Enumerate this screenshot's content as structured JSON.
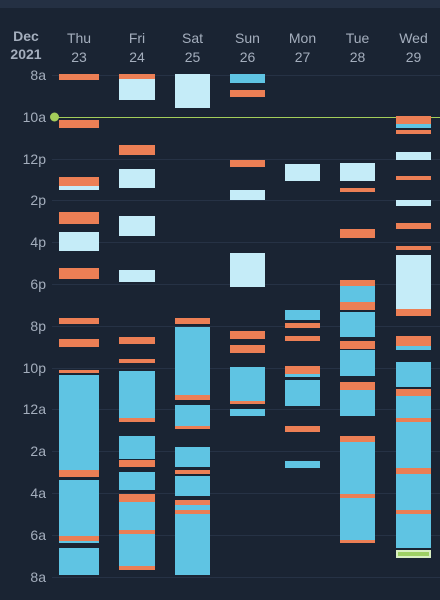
{
  "header": {
    "month": "Dec",
    "year": "2021"
  },
  "days": [
    {
      "name": "Thu",
      "date": "23"
    },
    {
      "name": "Fri",
      "date": "24"
    },
    {
      "name": "Sat",
      "date": "25"
    },
    {
      "name": "Sun",
      "date": "26"
    },
    {
      "name": "Mon",
      "date": "27"
    },
    {
      "name": "Tue",
      "date": "28"
    },
    {
      "name": "Wed",
      "date": "29"
    }
  ],
  "hour_labels": [
    "8a",
    "10a",
    "12p",
    "2p",
    "4p",
    "6p",
    "8p",
    "10p",
    "12a",
    "2a",
    "4a",
    "6a",
    "8a"
  ],
  "current_time_label": "10a",
  "colors": {
    "deep_sleep": "#5fc4e3",
    "light_sleep": "#c5ecf8",
    "awake": "#ec7f55",
    "now_line": "#a3cd5a",
    "background": "#1a2433"
  }
}
